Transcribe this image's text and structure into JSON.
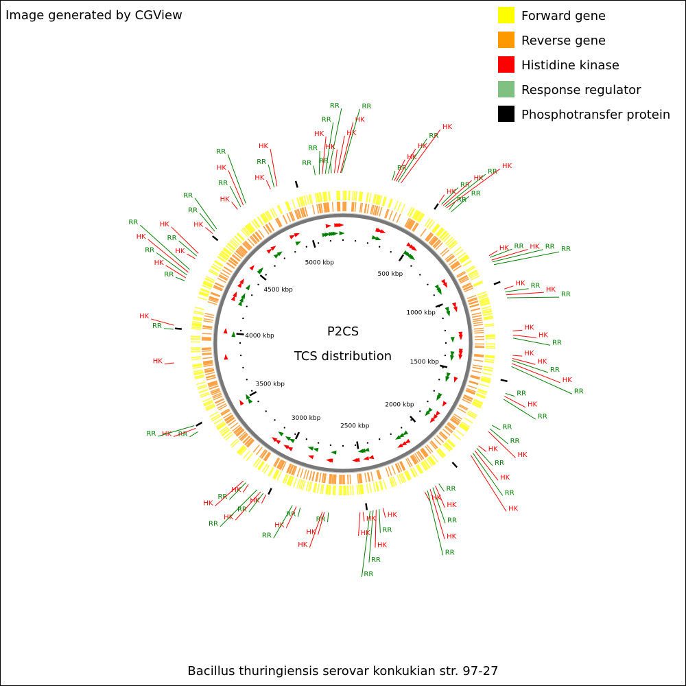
{
  "header": {
    "title": "Image generated by CGView"
  },
  "legend": [
    {
      "label": "Forward gene",
      "color": "#ffff00"
    },
    {
      "label": "Reverse gene",
      "color": "#ff9900"
    },
    {
      "label": "Histidine kinase",
      "color": "#ff0000"
    },
    {
      "label": "Response regulator",
      "color": "#80c080"
    },
    {
      "label": "Phosphotransfer protein",
      "color": "#000000"
    }
  ],
  "map": {
    "title": "P2CS",
    "subtitle": "TCS distribution",
    "range_kbp": [
      0,
      5237
    ],
    "ticks": [
      {
        "value": 500,
        "label": "500 kbp"
      },
      {
        "value": 1000,
        "label": "1000 kbp"
      },
      {
        "value": 1500,
        "label": "1500 kbp"
      },
      {
        "value": 2000,
        "label": "2000 kbp"
      },
      {
        "value": 2500,
        "label": "2500 kbp"
      },
      {
        "value": 3000,
        "label": "3000 kbp"
      },
      {
        "value": 3500,
        "label": "3500 kbp"
      },
      {
        "value": 4000,
        "label": "4000 kbp"
      },
      {
        "value": 4500,
        "label": "4500 kbp"
      },
      {
        "value": 5000,
        "label": "5000 kbp"
      }
    ],
    "features": [
      {
        "label": "RR",
        "position": 5100
      },
      {
        "label": "RR",
        "position": 5120
      },
      {
        "label": "HK",
        "position": 5135
      },
      {
        "label": "RR",
        "position": 5150
      },
      {
        "label": "RR",
        "position": 5165
      },
      {
        "label": "RR",
        "position": 5180
      },
      {
        "label": "HK",
        "position": 5195
      },
      {
        "label": "HK",
        "position": 5210
      },
      {
        "label": "HK",
        "position": 5225
      },
      {
        "label": "RR",
        "position": 5230
      },
      {
        "label": "RR",
        "position": 245
      },
      {
        "label": "HK",
        "position": 255
      },
      {
        "label": "HK",
        "position": 265
      },
      {
        "label": "RR",
        "position": 275
      },
      {
        "label": "HK",
        "position": 290
      },
      {
        "label": "HK",
        "position": 500
      },
      {
        "label": "RR",
        "position": 515
      },
      {
        "label": "HK",
        "position": 525
      },
      {
        "label": "RR",
        "position": 535
      },
      {
        "label": "HK",
        "position": 545
      },
      {
        "label": "RR",
        "position": 560
      },
      {
        "label": "RR",
        "position": 575
      },
      {
        "label": "HK",
        "position": 860
      },
      {
        "label": "RR",
        "position": 870
      },
      {
        "label": "HK",
        "position": 885
      },
      {
        "label": "RR",
        "position": 895
      },
      {
        "label": "RR",
        "position": 910
      },
      {
        "label": "HK",
        "position": 1040
      },
      {
        "label": "RR",
        "position": 1055
      },
      {
        "label": "HK",
        "position": 1070
      },
      {
        "label": "RR",
        "position": 1085
      },
      {
        "label": "HK",
        "position": 1250
      },
      {
        "label": "HK",
        "position": 1270
      },
      {
        "label": "RR",
        "position": 1285
      },
      {
        "label": "HK",
        "position": 1370
      },
      {
        "label": "HK",
        "position": 1385
      },
      {
        "label": "RR",
        "position": 1395
      },
      {
        "label": "HK",
        "position": 1410
      },
      {
        "label": "RR",
        "position": 1425
      },
      {
        "label": "RR",
        "position": 1560
      },
      {
        "label": "HK",
        "position": 1575
      },
      {
        "label": "RR",
        "position": 1590
      },
      {
        "label": "RR",
        "position": 1730
      },
      {
        "label": "RR",
        "position": 1750
      },
      {
        "label": "HK",
        "position": 1765
      },
      {
        "label": "HK",
        "position": 1850
      },
      {
        "label": "RR",
        "position": 1865
      },
      {
        "label": "HK",
        "position": 1880
      },
      {
        "label": "RR",
        "position": 1895
      },
      {
        "label": "HK",
        "position": 1910
      },
      {
        "label": "RR",
        "position": 2120
      },
      {
        "label": "HK",
        "position": 2140
      },
      {
        "label": "RR",
        "position": 2155
      },
      {
        "label": "HK",
        "position": 2170
      },
      {
        "label": "RR",
        "position": 2185
      },
      {
        "label": "HK",
        "position": 2200
      },
      {
        "label": "HK",
        "position": 2420
      },
      {
        "label": "RR",
        "position": 2440
      },
      {
        "label": "HK",
        "position": 2455
      },
      {
        "label": "RR",
        "position": 2470
      },
      {
        "label": "RR",
        "position": 2485
      },
      {
        "label": "HK",
        "position": 2520
      },
      {
        "label": "HK",
        "position": 2535
      },
      {
        "label": "RR",
        "position": 2690
      },
      {
        "label": "HK",
        "position": 2710
      },
      {
        "label": "HK",
        "position": 2720
      },
      {
        "label": "RR",
        "position": 2830
      },
      {
        "label": "HK",
        "position": 2850
      },
      {
        "label": "RR",
        "position": 2870
      },
      {
        "label": "HK",
        "position": 3010
      },
      {
        "label": "RR",
        "position": 3025
      },
      {
        "label": "HK",
        "position": 3040
      },
      {
        "label": "RR",
        "position": 3060
      },
      {
        "label": "HK",
        "position": 3110
      },
      {
        "label": "RR",
        "position": 3125
      },
      {
        "label": "HK",
        "position": 3140
      },
      {
        "label": "RR",
        "position": 3470
      },
      {
        "label": "HK",
        "position": 3490
      },
      {
        "label": "RR",
        "position": 3505
      },
      {
        "label": "HK",
        "position": 3830
      },
      {
        "label": "RR",
        "position": 3995
      },
      {
        "label": "HK",
        "position": 4015
      },
      {
        "label": "RR",
        "position": 4240
      },
      {
        "label": "HK",
        "position": 4255
      },
      {
        "label": "RR",
        "position": 4270
      },
      {
        "label": "HK",
        "position": 4285
      },
      {
        "label": "RR",
        "position": 4300
      },
      {
        "label": "HK",
        "position": 4360
      },
      {
        "label": "RR",
        "position": 4375
      },
      {
        "label": "HK",
        "position": 4390
      },
      {
        "label": "HK",
        "position": 4510
      },
      {
        "label": "RR",
        "position": 4525
      },
      {
        "label": "RR",
        "position": 4540
      },
      {
        "label": "HK",
        "position": 4680
      },
      {
        "label": "RR",
        "position": 4700
      },
      {
        "label": "HK",
        "position": 4715
      },
      {
        "label": "RR",
        "position": 4730
      },
      {
        "label": "HK",
        "position": 4870
      },
      {
        "label": "RR",
        "position": 4890
      },
      {
        "label": "HK",
        "position": 4905
      }
    ]
  },
  "footer": {
    "organism": "Bacillus thuringiensis serovar konkukian str. 97-27"
  }
}
